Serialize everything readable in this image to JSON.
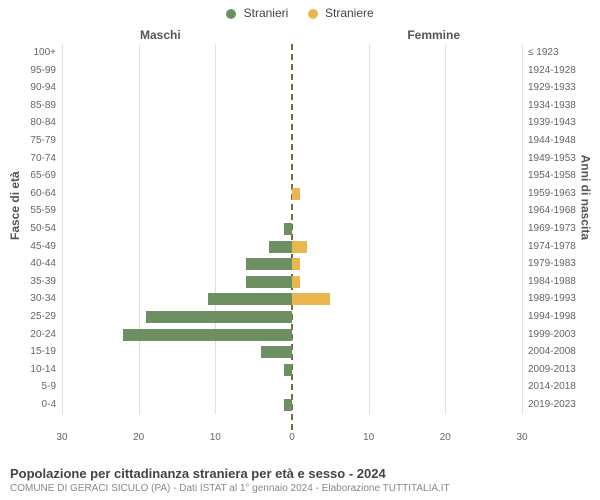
{
  "chart": {
    "type": "diverging-bar",
    "legend": [
      {
        "label": "Stranieri",
        "color": "#6d9062"
      },
      {
        "label": "Straniere",
        "color": "#eab64e"
      }
    ],
    "headers": {
      "left": "Maschi",
      "right": "Femmine"
    },
    "axis_left_title": "Fasce di età",
    "axis_right_title": "Anni di nascita",
    "xlim": 30,
    "xtick_step": 10,
    "xticks": [
      30,
      20,
      10,
      0,
      10,
      20,
      30
    ],
    "bar_colors": {
      "male": "#6d9062",
      "female": "#eab64e"
    },
    "background_color": "#ffffff",
    "grid_color": "#e0e0e0",
    "centerline_color": "#7a6b3a",
    "rows": [
      {
        "age": "100+",
        "cohort": "≤ 1923",
        "male": 0,
        "female": 0
      },
      {
        "age": "95-99",
        "cohort": "1924-1928",
        "male": 0,
        "female": 0
      },
      {
        "age": "90-94",
        "cohort": "1929-1933",
        "male": 0,
        "female": 0
      },
      {
        "age": "85-89",
        "cohort": "1934-1938",
        "male": 0,
        "female": 0
      },
      {
        "age": "80-84",
        "cohort": "1939-1943",
        "male": 0,
        "female": 0
      },
      {
        "age": "75-79",
        "cohort": "1944-1948",
        "male": 0,
        "female": 0
      },
      {
        "age": "70-74",
        "cohort": "1949-1953",
        "male": 0,
        "female": 0
      },
      {
        "age": "65-69",
        "cohort": "1954-1958",
        "male": 0,
        "female": 0
      },
      {
        "age": "60-64",
        "cohort": "1959-1963",
        "male": 0,
        "female": 1
      },
      {
        "age": "55-59",
        "cohort": "1964-1968",
        "male": 0,
        "female": 0
      },
      {
        "age": "50-54",
        "cohort": "1969-1973",
        "male": 1,
        "female": 0
      },
      {
        "age": "45-49",
        "cohort": "1974-1978",
        "male": 3,
        "female": 2
      },
      {
        "age": "40-44",
        "cohort": "1979-1983",
        "male": 6,
        "female": 1
      },
      {
        "age": "35-39",
        "cohort": "1984-1988",
        "male": 6,
        "female": 1
      },
      {
        "age": "30-34",
        "cohort": "1989-1993",
        "male": 11,
        "female": 5
      },
      {
        "age": "25-29",
        "cohort": "1994-1998",
        "male": 19,
        "female": 0
      },
      {
        "age": "20-24",
        "cohort": "1999-2003",
        "male": 22,
        "female": 0
      },
      {
        "age": "15-19",
        "cohort": "2004-2008",
        "male": 4,
        "female": 0
      },
      {
        "age": "10-14",
        "cohort": "2009-2013",
        "male": 1,
        "female": 0
      },
      {
        "age": "5-9",
        "cohort": "2014-2018",
        "male": 0,
        "female": 0
      },
      {
        "age": "0-4",
        "cohort": "2019-2023",
        "male": 1,
        "female": 0
      }
    ],
    "title": "Popolazione per cittadinanza straniera per età e sesso - 2024",
    "source": "COMUNE DI GERACI SICULO (PA) - Dati ISTAT al 1° gennaio 2024 - Elaborazione TUTTITALIA.IT"
  }
}
